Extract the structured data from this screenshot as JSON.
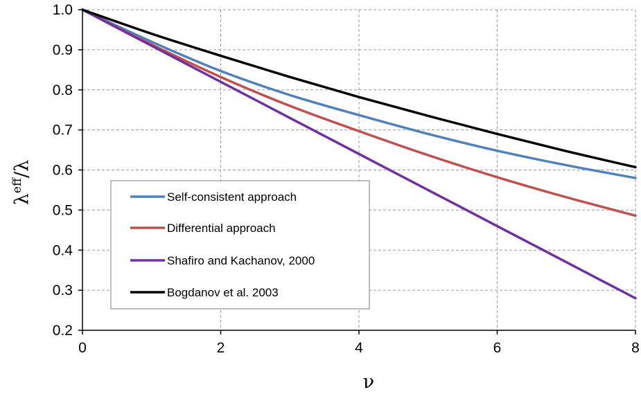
{
  "chart_data": {
    "type": "line",
    "xlabel": "ν",
    "ylabel_base": "λ",
    "ylabel_sup": "eff",
    "ylabel_tail": "/λ",
    "xlim": [
      0,
      8
    ],
    "ylim": [
      0.2,
      1.0
    ],
    "xticks": [
      "0",
      "2",
      "4",
      "6",
      "8"
    ],
    "yticks": [
      "0.2",
      "0.3",
      "0.4",
      "0.5",
      "0.6",
      "0.7",
      "0.8",
      "0.9",
      "1.0"
    ],
    "grid": true,
    "legend_position": "bottom-left",
    "x": [
      0,
      1,
      2,
      3,
      4,
      5,
      6,
      7,
      8
    ],
    "series": [
      {
        "name": "Self-consistent approach",
        "color": "#4f81bd",
        "values": [
          1.0,
          0.92,
          0.847,
          0.787,
          0.737,
          0.69,
          0.648,
          0.612,
          0.58
        ]
      },
      {
        "name": "Differential approach",
        "color": "#c0504d",
        "values": [
          1.0,
          0.913,
          0.832,
          0.76,
          0.697,
          0.637,
          0.582,
          0.532,
          0.486
        ]
      },
      {
        "name": "Shafiro and Kachanov, 2000",
        "color": "#7030a0",
        "values": [
          1.0,
          0.91,
          0.82,
          0.73,
          0.64,
          0.55,
          0.46,
          0.37,
          0.28
        ]
      },
      {
        "name": "Bogdanov et al. 2003",
        "color": "#000000",
        "values": [
          1.0,
          0.94,
          0.885,
          0.832,
          0.782,
          0.735,
          0.69,
          0.647,
          0.607
        ]
      }
    ]
  }
}
